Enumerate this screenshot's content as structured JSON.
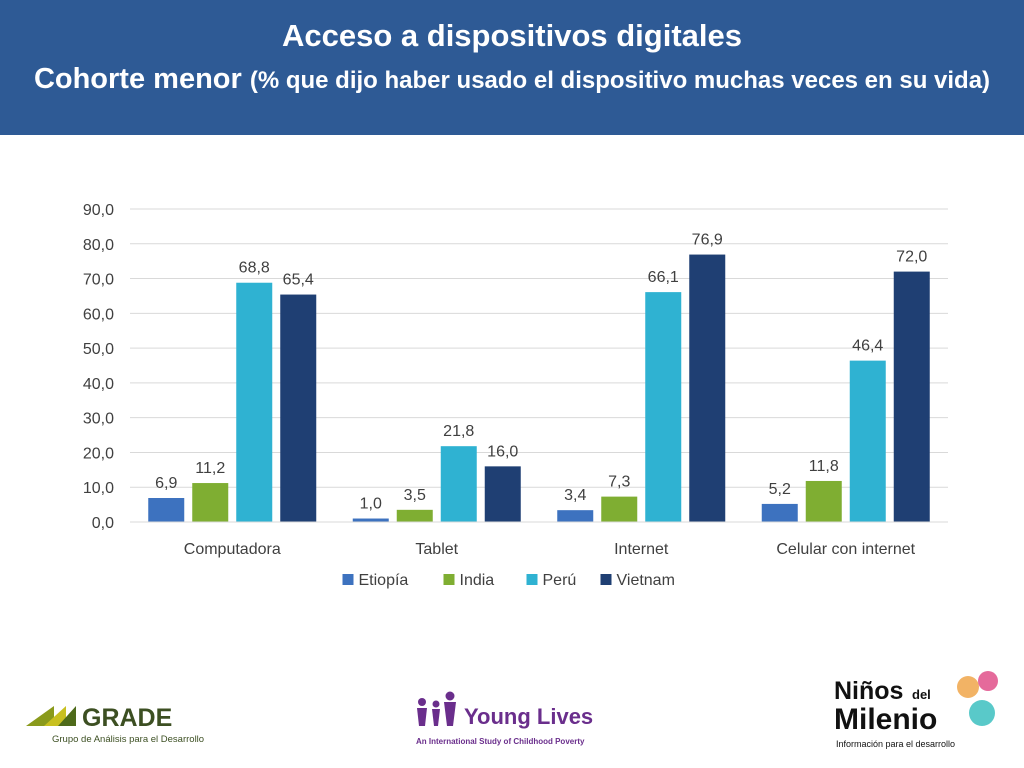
{
  "header": {
    "title_line1": "Acceso a dispositivos digitales",
    "title_line2_main": "Cohorte menor",
    "title_line2_sub": "(% que dijo haber usado el dispositivo muchas veces en su vida)"
  },
  "chart_data": {
    "type": "bar",
    "categories": [
      "Computadora",
      "Tablet",
      "Internet",
      "Celular con internet"
    ],
    "series": [
      {
        "name": "Etiopía",
        "values": [
          6.9,
          1.0,
          3.4,
          5.2
        ],
        "color": "#3d72bf"
      },
      {
        "name": "India",
        "values": [
          11.2,
          3.5,
          7.3,
          11.8
        ],
        "color": "#7fae32"
      },
      {
        "name": "Perú",
        "values": [
          68.8,
          21.8,
          66.1,
          46.4
        ],
        "color": "#2fb2d2"
      },
      {
        "name": "Vietnam",
        "values": [
          65.4,
          16.0,
          76.9,
          72.0
        ],
        "color": "#1f3f73"
      }
    ],
    "ylim": [
      0,
      90
    ],
    "yticks": [
      0,
      10,
      20,
      30,
      40,
      50,
      60,
      70,
      80,
      90
    ],
    "decimal_separator": ",",
    "grid": true,
    "legend": "bottom",
    "title": "",
    "xlabel": "",
    "ylabel": ""
  },
  "logos": {
    "grade": {
      "name": "GRADE",
      "tagline": "Grupo de Análisis para el Desarrollo"
    },
    "young_lives": {
      "name": "Young Lives",
      "tagline": "An International Study of Childhood Poverty"
    },
    "ninos": {
      "name_line1": "Niños",
      "name_del": "del",
      "name_line2": "Milenio",
      "tagline": "Información para el desarrollo"
    }
  }
}
